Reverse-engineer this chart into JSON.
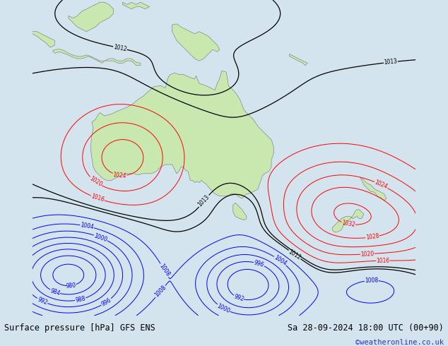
{
  "title_left": "Surface pressure [hPa] GFS ENS",
  "title_right": "Sa 28-09-2024 18:00 UTC (00+90)",
  "watermark": "©weatheronline.co.uk",
  "background_color": "#d4e4ee",
  "land_color": "#c8e8b0",
  "land_edge_color": "#888888",
  "fig_width": 6.34,
  "fig_height": 4.9,
  "dpi": 100,
  "bottom_bar_color": "#e8e8e8",
  "bottom_text_color": "#000000",
  "watermark_color": "#3333bb"
}
